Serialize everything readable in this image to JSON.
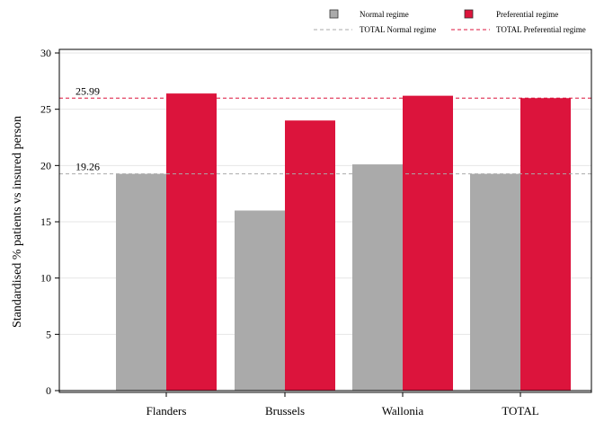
{
  "chart_data": {
    "type": "bar",
    "title": "",
    "xlabel": "",
    "ylabel": "Standardised % patients vs insured person",
    "categories": [
      "Flanders",
      "Brussels",
      "Wallonia",
      "TOTAL"
    ],
    "series": [
      {
        "name": "Normal regime",
        "values": [
          19.26,
          16.0,
          20.1,
          19.26
        ],
        "color": "#aaaaaa"
      },
      {
        "name": "Preferential regime",
        "values": [
          26.4,
          24.0,
          26.2,
          25.99
        ],
        "color": "#dc143c"
      }
    ],
    "reference_lines": [
      {
        "name": "TOTAL Normal regime",
        "value": 19.26,
        "label": "19.26",
        "color": "#aaaaaa"
      },
      {
        "name": "TOTAL Preferential regime",
        "value": 25.99,
        "label": "25.99",
        "color": "#dc143c"
      }
    ],
    "ylim": [
      0,
      30
    ],
    "yticks": [
      "0",
      "5",
      "10",
      "15",
      "20",
      "25",
      "30"
    ],
    "grid": true,
    "legend_position": "top"
  }
}
